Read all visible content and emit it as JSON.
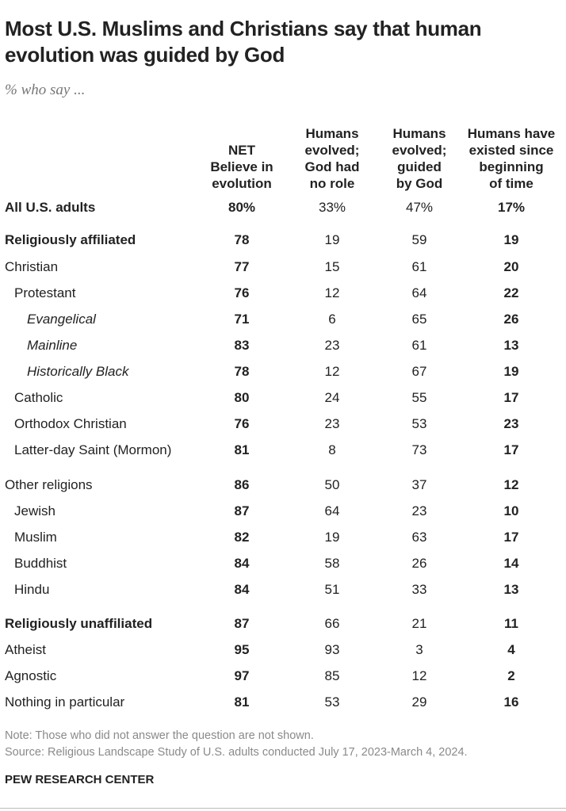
{
  "header": {
    "title": "Most U.S. Muslims and Christians say that human evolution was guided by God",
    "subtitle": "% who say ..."
  },
  "chart_data": {
    "type": "table",
    "columns": [
      [
        "NET",
        "Believe in",
        "evolution"
      ],
      [
        "Humans",
        "evolved;",
        "God had",
        "no role"
      ],
      [
        "Humans",
        "evolved;",
        "guided",
        "by God"
      ],
      [
        "Humans have",
        "existed since",
        "beginning",
        "of time"
      ]
    ],
    "rows": [
      {
        "label": "All U.S. adults",
        "values": [
          "80%",
          "33%",
          "47%",
          "17%"
        ],
        "indent": 0,
        "bold_label": true,
        "italic": false
      },
      {
        "label": "Religiously affiliated",
        "values": [
          "78",
          "19",
          "59",
          "19"
        ],
        "indent": 0,
        "bold_label": true,
        "italic": false
      },
      {
        "label": "Christian",
        "values": [
          "77",
          "15",
          "61",
          "20"
        ],
        "indent": 0,
        "bold_label": false,
        "italic": false
      },
      {
        "label": "Protestant",
        "values": [
          "76",
          "12",
          "64",
          "22"
        ],
        "indent": 1,
        "bold_label": false,
        "italic": false
      },
      {
        "label": "Evangelical",
        "values": [
          "71",
          "6",
          "65",
          "26"
        ],
        "indent": 2,
        "bold_label": false,
        "italic": true
      },
      {
        "label": "Mainline",
        "values": [
          "83",
          "23",
          "61",
          "13"
        ],
        "indent": 2,
        "bold_label": false,
        "italic": true
      },
      {
        "label": "Historically Black",
        "values": [
          "78",
          "12",
          "67",
          "19"
        ],
        "indent": 2,
        "bold_label": false,
        "italic": true
      },
      {
        "label": "Catholic",
        "values": [
          "80",
          "24",
          "55",
          "17"
        ],
        "indent": 1,
        "bold_label": false,
        "italic": false
      },
      {
        "label": "Orthodox Christian",
        "values": [
          "76",
          "23",
          "53",
          "23"
        ],
        "indent": 1,
        "bold_label": false,
        "italic": false
      },
      {
        "label": "Latter-day Saint (Mormon)",
        "values": [
          "81",
          "8",
          "73",
          "17"
        ],
        "indent": 1,
        "bold_label": false,
        "italic": false
      },
      {
        "label": "Other religions",
        "values": [
          "86",
          "50",
          "37",
          "12"
        ],
        "indent": 0,
        "bold_label": false,
        "italic": false
      },
      {
        "label": "Jewish",
        "values": [
          "87",
          "64",
          "23",
          "10"
        ],
        "indent": 1,
        "bold_label": false,
        "italic": false
      },
      {
        "label": "Muslim",
        "values": [
          "82",
          "19",
          "63",
          "17"
        ],
        "indent": 1,
        "bold_label": false,
        "italic": false
      },
      {
        "label": "Buddhist",
        "values": [
          "84",
          "58",
          "26",
          "14"
        ],
        "indent": 1,
        "bold_label": false,
        "italic": false
      },
      {
        "label": "Hindu",
        "values": [
          "84",
          "51",
          "33",
          "13"
        ],
        "indent": 1,
        "bold_label": false,
        "italic": false
      },
      {
        "label": "Religiously unaffiliated",
        "values": [
          "87",
          "66",
          "21",
          "11"
        ],
        "indent": 0,
        "bold_label": true,
        "italic": false
      },
      {
        "label": "Atheist",
        "values": [
          "95",
          "93",
          "3",
          "4"
        ],
        "indent": 0,
        "bold_label": false,
        "italic": false
      },
      {
        "label": "Agnostic",
        "values": [
          "97",
          "85",
          "12",
          "2"
        ],
        "indent": 0,
        "bold_label": false,
        "italic": false
      },
      {
        "label": "Nothing in particular",
        "values": [
          "81",
          "53",
          "29",
          "16"
        ],
        "indent": 0,
        "bold_label": false,
        "italic": false
      }
    ],
    "bold_columns": [
      0,
      3
    ]
  },
  "footer": {
    "note": "Note: Those who did not answer the question are not shown.",
    "source": "Source: Religious Landscape Study of U.S. adults conducted July 17, 2023-March 4, 2024.",
    "brand": "PEW RESEARCH CENTER"
  }
}
